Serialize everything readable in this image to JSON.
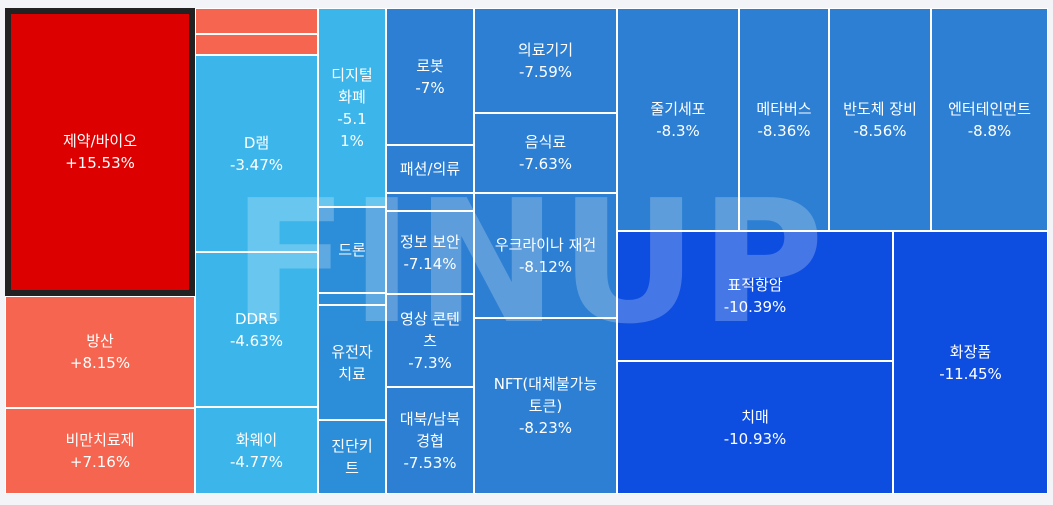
{
  "watermark": "FINUP",
  "chart_data": {
    "type": "treemap",
    "sectors": [
      {
        "name": "제약/바이오",
        "value": "+15.53%",
        "color": "#dd0000",
        "selected": true
      },
      {
        "name": "",
        "value": "",
        "color": "#f5654f"
      },
      {
        "name": "",
        "value": "",
        "color": "#f5654f"
      },
      {
        "name": "방산",
        "value": "+8.15%",
        "color": "#f5654f"
      },
      {
        "name": "비만치료제",
        "value": "+7.16%",
        "color": "#f5654f"
      },
      {
        "name": "D램",
        "value": "-3.47%",
        "color": "#3bb5ea"
      },
      {
        "name": "DDR5",
        "value": "-4.63%",
        "color": "#3bb5ea"
      },
      {
        "name": "화웨이",
        "value": "-4.77%",
        "color": "#3bb5ea"
      },
      {
        "name": "디지털\n화폐",
        "value": "-5.1\n1%",
        "color": "#3bb5ea"
      },
      {
        "name": "드론",
        "value": "",
        "color": "#2c8ed8"
      },
      {
        "name": "",
        "value": "",
        "color": "#2c8ed8"
      },
      {
        "name": "유전자\n치료",
        "value": "",
        "color": "#2c8ed8"
      },
      {
        "name": "진단키\n트",
        "value": "",
        "color": "#2c8ed8"
      },
      {
        "name": "로봇",
        "value": "-7%",
        "color": "#2c7fd2"
      },
      {
        "name": "패션/의류",
        "value": "",
        "color": "#2c7fd2"
      },
      {
        "name": "",
        "value": "",
        "color": "#2c7fd2"
      },
      {
        "name": "정보 보안",
        "value": "-7.14%",
        "color": "#2c7fd2"
      },
      {
        "name": "영상 콘텐\n츠",
        "value": "-7.3%",
        "color": "#2c7fd2"
      },
      {
        "name": "대북/남북\n경협",
        "value": "-7.53%",
        "color": "#2c7fd2"
      },
      {
        "name": "의료기기",
        "value": "-7.59%",
        "color": "#2c7fd2"
      },
      {
        "name": "음식료",
        "value": "-7.63%",
        "color": "#2c7fd2"
      },
      {
        "name": "우크라이나 재건",
        "value": "-8.12%",
        "color": "#2c7fd2"
      },
      {
        "name": "NFT(대체불가능\n토큰)",
        "value": "-8.23%",
        "color": "#2c7fd2"
      },
      {
        "name": "줄기세포",
        "value": "-8.3%",
        "color": "#2c7fd2"
      },
      {
        "name": "메타버스",
        "value": "-8.36%",
        "color": "#2c7fd2"
      },
      {
        "name": "반도체 장비",
        "value": "-8.56%",
        "color": "#2c7fd2"
      },
      {
        "name": "엔터테인먼트",
        "value": "-8.8%",
        "color": "#2c7fd2"
      },
      {
        "name": "표적항암",
        "value": "-10.39%",
        "color": "#0d4de0"
      },
      {
        "name": "치매",
        "value": "-10.93%",
        "color": "#0d4de0"
      },
      {
        "name": "화장품",
        "value": "-11.45%",
        "color": "#0d4de0"
      }
    ]
  }
}
